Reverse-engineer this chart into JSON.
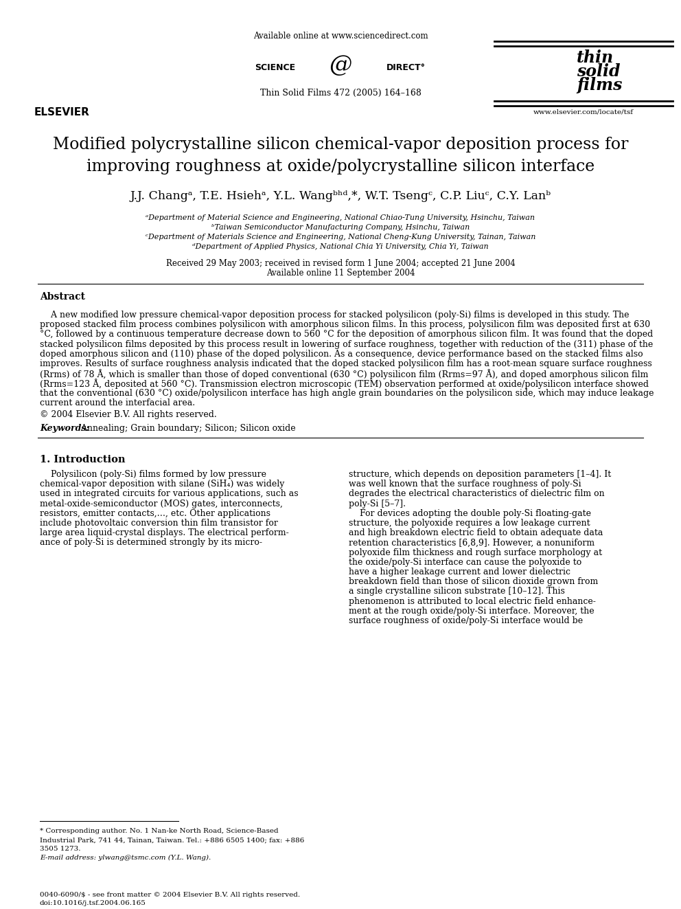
{
  "bg_color": "#ffffff",
  "header_available_online": "Available online at www.sciencedirect.com",
  "journal_ref": "Thin Solid Films 472 (2005) 164–168",
  "journal_url": "www.elsevier.com/locate/tsf",
  "title_line1": "Modified polycrystalline silicon chemical-vapor deposition process for",
  "title_line2": "improving roughness at oxide/polycrystalline silicon interface",
  "authors": "J.J. Changᵃ, T.E. Hsiehᵃ, Y.L. Wangᵇʰᵈ,*, W.T. Tsengᶜ, C.P. Liuᶜ, C.Y. Lanᵇ",
  "affil_a": "ᵃDepartment of Material Science and Engineering, National Chiao-Tung University, Hsinchu, Taiwan",
  "affil_b": "ᵇTaiwan Semiconductor Manufacturing Company, Hsinchu, Taiwan",
  "affil_c": "ᶜDepartment of Materials Science and Engineering, National Cheng-Kung University, Tainan, Taiwan",
  "affil_d": "ᵈDepartment of Applied Physics, National Chia Yi University, Chia Yi, Taiwan",
  "received_line": "Received 29 May 2003; received in revised form 1 June 2004; accepted 21 June 2004",
  "available_line": "Available online 11 September 2004",
  "abstract_title": "Abstract",
  "copyright_line": "© 2004 Elsevier B.V. All rights reserved.",
  "keywords_label": "Keywords:",
  "keywords_text": " Annealing; Grain boundary; Silicon; Silicon oxide",
  "section1_title": "1. Introduction",
  "footnote_star": "* Corresponding author. No. 1 Nan-ke North Road, Science-Based Industrial Park, 741 44, Tainan, Taiwan. Tel.: +886 6505 1400; fax: +886 3505 1273.",
  "footnote_email": "E-mail address: ylwang@tsmc.com (Y.L. Wang).",
  "footer_issn": "0040-6090/$ - see front matter © 2004 Elsevier B.V. All rights reserved.",
  "footer_doi": "doi:10.1016/j.tsf.2004.06.165",
  "abstract_lines": [
    "    A new modified low pressure chemical-vapor deposition process for stacked polysilicon (poly-Si) films is developed in this study. The",
    "proposed stacked film process combines polysilicon with amorphous silicon films. In this process, polysilicon film was deposited first at 630",
    "°C, followed by a continuous temperature decrease down to 560 °C for the deposition of amorphous silicon film. It was found that the doped",
    "stacked polysilicon films deposited by this process result in lowering of surface roughness, together with reduction of the (311) phase of the",
    "doped amorphous silicon and (110) phase of the doped polysilicon. As a consequence, device performance based on the stacked films also",
    "improves. Results of surface roughness analysis indicated that the doped stacked polysilicon film has a root-mean square surface roughness",
    "(Rrms) of 78 Å, which is smaller than those of doped conventional (630 °C) polysilicon film (Rrms=97 Å), and doped amorphous silicon film",
    "(Rrms=123 Å, deposited at 560 °C). Transmission electron microscopic (TEM) observation performed at oxide/polysilicon interface showed",
    "that the conventional (630 °C) oxide/polysilicon interface has high angle grain boundaries on the polysilicon side, which may induce leakage",
    "current around the interfacial area."
  ],
  "left_intro_lines": [
    "    Polysilicon (poly-Si) films formed by low pressure",
    "chemical-vapor deposition with silane (SiH₄) was widely",
    "used in integrated circuits for various applications, such as",
    "metal-oxide-semiconductor (MOS) gates, interconnects,",
    "resistors, emitter contacts,…, etc. Other applications",
    "include photovoltaic conversion thin film transistor for",
    "large area liquid-crystal displays. The electrical perform-",
    "ance of poly-Si is determined strongly by its micro-"
  ],
  "right_intro_lines": [
    "structure, which depends on deposition parameters [1–4]. It",
    "was well known that the surface roughness of poly-Si",
    "degrades the electrical characteristics of dielectric film on",
    "poly-Si [5–7].",
    "    For devices adopting the double poly-Si floating-gate",
    "structure, the polyoxide requires a low leakage current",
    "and high breakdown electric field to obtain adequate data",
    "retention characteristics [6,8,9]. However, a nonuniform",
    "polyoxide film thickness and rough surface morphology at",
    "the oxide/poly-Si interface can cause the polyoxide to",
    "have a higher leakage current and lower dielectric",
    "breakdown field than those of silicon dioxide grown from",
    "a single crystalline silicon substrate [10–12]. This",
    "phenomenon is attributed to local electric field enhance-",
    "ment at the rough oxide/poly-Si interface. Moreover, the",
    "surface roughness of oxide/poly-Si interface would be"
  ],
  "footnote_lines": [
    "* Corresponding author. No. 1 Nan-ke North Road, Science-Based",
    "Industrial Park, 741 44, Tainan, Taiwan. Tel.: +886 6505 1400; fax: +886",
    "3505 1273."
  ]
}
